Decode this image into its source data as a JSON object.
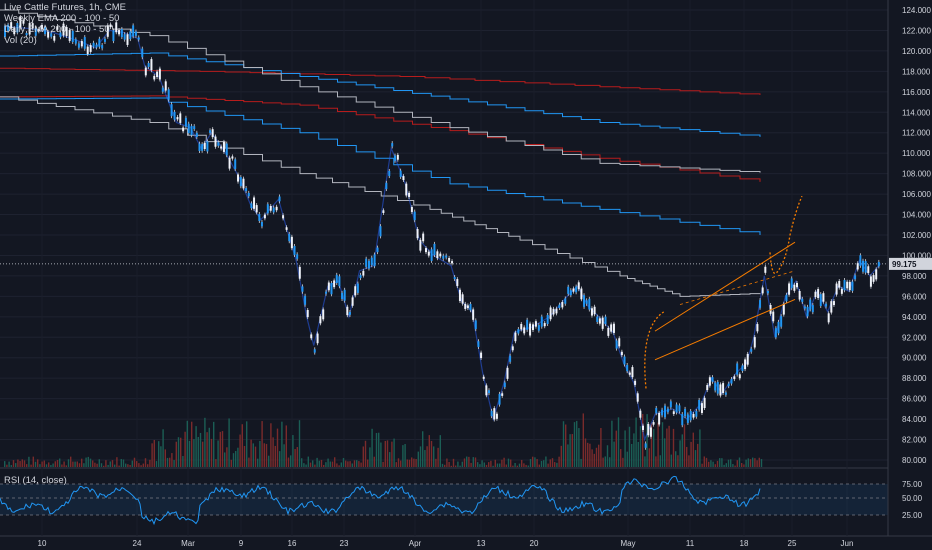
{
  "header": {
    "title": "Live Cattle Futures, 1h, CME",
    "indicator_1": "Weekly EMA 200 - 100 - 50",
    "indicator_2": "Daily EMA 200 - 100 - 50",
    "indicator_3": "Vol (20)"
  },
  "rsi": {
    "label": "RSI (14, close)",
    "levels": [
      "75.00",
      "50.00",
      "25.00"
    ]
  },
  "price_label": "99.175",
  "colors": {
    "background": "#131722",
    "candle": "#d1d4dc",
    "up": "#26a69a",
    "down": "#ef5350",
    "ema_red": "#b71c1c",
    "ema_blue": "#2196f3",
    "ema_white": "#b2b5be",
    "channel": "#f57c00",
    "rsi": "#2196f3"
  },
  "chart_data": {
    "type": "line",
    "title": "Live Cattle Futures, 1h, CME",
    "x_ticks": [
      "10",
      "24",
      "Mar",
      "9",
      "16",
      "23",
      "Apr",
      "13",
      "20",
      "May",
      "11",
      "18",
      "25",
      "Jun"
    ],
    "y_ticks": [
      "124.000",
      "122.000",
      "120.000",
      "118.000",
      "116.000",
      "114.000",
      "112.000",
      "110.000",
      "108.000",
      "106.000",
      "104.000",
      "102.000",
      "100.000",
      "98.000",
      "96.000",
      "94.000",
      "92.000",
      "90.000",
      "88.000",
      "86.000",
      "84.000",
      "82.000",
      "80.000"
    ],
    "ylim": [
      79.5,
      124.5
    ],
    "current_price": 99.175,
    "series": [
      {
        "values": [
          [
            0,
            122.4
          ],
          [
            0.7,
            122.2
          ],
          [
            1.4,
            121.8
          ],
          [
            2.1,
            121.0
          ],
          [
            2.6,
            120.3
          ],
          [
            3.0,
            122.0
          ],
          [
            3.4,
            121.8
          ],
          [
            3.8,
            121.2
          ],
          [
            4.0,
            118.5
          ],
          [
            4.4,
            117.5
          ],
          [
            4.9,
            113.0
          ],
          [
            5.3,
            112.5
          ],
          [
            5.6,
            110.5
          ],
          [
            5.9,
            112.0
          ],
          [
            6.3,
            110.0
          ],
          [
            6.7,
            107.5
          ],
          [
            7.0,
            105.0
          ],
          [
            7.3,
            103.5
          ],
          [
            7.8,
            105.5
          ],
          [
            8.0,
            103.0
          ],
          [
            8.3,
            99.5
          ],
          [
            8.6,
            94.0
          ],
          [
            8.8,
            91.2
          ],
          [
            9.2,
            97.0
          ],
          [
            9.5,
            97.5
          ],
          [
            9.8,
            94.0
          ],
          [
            10.1,
            98.5
          ],
          [
            10.5,
            99.0
          ],
          [
            11.0,
            110.5
          ],
          [
            11.4,
            107.0
          ],
          [
            11.8,
            101.5
          ],
          [
            12.2,
            100.0
          ],
          [
            12.7,
            99.0
          ],
          [
            13.0,
            95.5
          ],
          [
            13.3,
            94.5
          ],
          [
            13.6,
            88.5
          ],
          [
            13.9,
            84.0
          ],
          [
            14.2,
            87.5
          ],
          [
            14.5,
            92.5
          ],
          [
            15.0,
            93.0
          ],
          [
            15.5,
            94.0
          ],
          [
            16.0,
            96.0
          ],
          [
            16.3,
            97.0
          ],
          [
            16.6,
            95.0
          ],
          [
            16.9,
            94.0
          ],
          [
            17.3,
            92.5
          ],
          [
            17.6,
            89.5
          ],
          [
            17.9,
            87.5
          ],
          [
            18.2,
            82.0
          ],
          [
            18.5,
            84.5
          ],
          [
            19.0,
            85.0
          ],
          [
            19.4,
            84.0
          ],
          [
            19.8,
            85.5
          ],
          [
            20.1,
            88.0
          ],
          [
            20.4,
            86.5
          ],
          [
            20.8,
            88.5
          ],
          [
            21.1,
            89.5
          ],
          [
            21.3,
            92.0
          ],
          [
            21.6,
            98.0
          ],
          [
            21.9,
            92.0
          ],
          [
            22.2,
            96.0
          ],
          [
            22.5,
            97.5
          ],
          [
            22.8,
            94.0
          ],
          [
            23.1,
            96.5
          ],
          [
            23.4,
            94.5
          ],
          [
            23.7,
            97.0
          ],
          [
            24.0,
            96.5
          ],
          [
            24.3,
            99.5
          ],
          [
            24.6,
            98.0
          ],
          [
            24.9,
            99.2
          ]
        ]
      }
    ]
  }
}
